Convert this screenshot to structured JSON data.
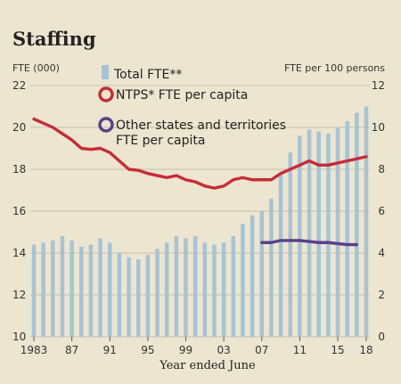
{
  "chart_data": {
    "type": "bar",
    "title": "Staffing",
    "y_left_label": "FTE (000)",
    "y_right_label": "FTE per 100 persons",
    "xlabel": "Year ended June",
    "y_left_range": [
      10,
      22
    ],
    "y_left_ticks": [
      "10",
      "12",
      "14",
      "16",
      "18",
      "20",
      "22"
    ],
    "y_right_range": [
      0,
      12
    ],
    "y_right_ticks": [
      "0",
      "2",
      "4",
      "6",
      "8",
      "10",
      "12"
    ],
    "x_range": [
      1983,
      2018
    ],
    "x_tick_values": [
      1983,
      1987,
      1991,
      1995,
      1999,
      2003,
      2007,
      2011,
      2015,
      2018
    ],
    "x_tick_labels": [
      "1983",
      "87",
      "91",
      "95",
      "99",
      "03",
      "07",
      "11",
      "15",
      "18"
    ],
    "grid": true,
    "legend_position": "top-left",
    "colors": {
      "bar": "#a6c3d6",
      "ntps_line": "#c62c36",
      "other_line": "#5a3f8a",
      "grid": "#c9c3ae"
    },
    "series": [
      {
        "name": "Total FTE**",
        "axis": "left",
        "kind": "bar",
        "x": [
          1983,
          1984,
          1985,
          1986,
          1987,
          1988,
          1989,
          1990,
          1991,
          1992,
          1993,
          1994,
          1995,
          1996,
          1997,
          1998,
          1999,
          2000,
          2001,
          2002,
          2003,
          2004,
          2005,
          2006,
          2007,
          2008,
          2009,
          2010,
          2011,
          2012,
          2013,
          2014,
          2015,
          2016,
          2017,
          2018
        ],
        "values": [
          14.4,
          14.5,
          14.6,
          14.8,
          14.6,
          14.3,
          14.4,
          14.7,
          14.5,
          14.0,
          13.8,
          13.7,
          13.9,
          14.2,
          14.5,
          14.8,
          14.7,
          14.8,
          14.5,
          14.4,
          14.5,
          14.8,
          15.4,
          15.8,
          16.0,
          16.6,
          17.8,
          18.8,
          19.6,
          19.9,
          19.8,
          19.7,
          20.0,
          20.3,
          20.7,
          21.0
        ]
      },
      {
        "name": "NTPS* FTE per capita",
        "axis": "right",
        "kind": "line",
        "x": [
          1983,
          1984,
          1985,
          1986,
          1987,
          1988,
          1989,
          1990,
          1991,
          1992,
          1993,
          1994,
          1995,
          1996,
          1997,
          1998,
          1999,
          2000,
          2001,
          2002,
          2003,
          2004,
          2005,
          2006,
          2007,
          2008,
          2009,
          2010,
          2011,
          2012,
          2013,
          2014,
          2015,
          2016,
          2017,
          2018
        ],
        "values": [
          10.4,
          10.2,
          10.0,
          9.7,
          9.4,
          9.0,
          8.95,
          9.0,
          8.8,
          8.4,
          8.0,
          7.95,
          7.8,
          7.7,
          7.6,
          7.7,
          7.5,
          7.4,
          7.2,
          7.1,
          7.2,
          7.5,
          7.6,
          7.5,
          7.5,
          7.5,
          7.8,
          8.0,
          8.2,
          8.4,
          8.2,
          8.2,
          8.3,
          8.4,
          8.5,
          8.6
        ]
      },
      {
        "name": "Other states and territories FTE per capita",
        "axis": "right",
        "kind": "line",
        "x": [
          2007,
          2008,
          2009,
          2010,
          2011,
          2012,
          2013,
          2014,
          2015,
          2016,
          2017
        ],
        "values": [
          4.5,
          4.5,
          4.6,
          4.6,
          4.6,
          4.55,
          4.5,
          4.5,
          4.45,
          4.4,
          4.4
        ]
      }
    ]
  }
}
